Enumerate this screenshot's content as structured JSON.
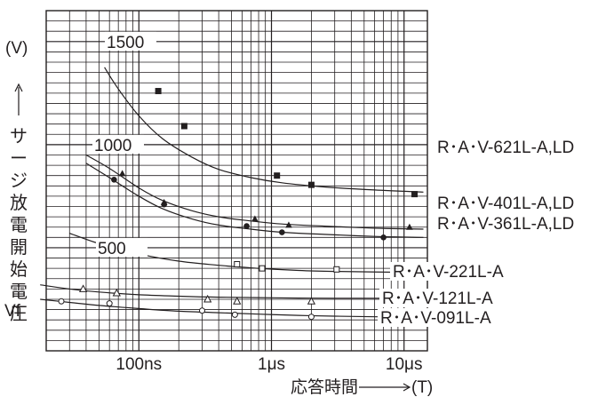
{
  "chart_data": {
    "type": "line",
    "title": "",
    "xlabel": "応答時間 ———→(T)",
    "xlabel_text": "応答時間",
    "xlabel_unit": "(T)",
    "ylabel": "(V) ↑ サージ放電開始電圧",
    "ylabel_unit": "(V)",
    "ylabel_text": [
      "サ",
      "ー",
      "ジ",
      "放",
      "電",
      "開",
      "始",
      "電",
      "圧"
    ],
    "x_scale": "log",
    "x_unit": "s",
    "xlim": [
      2e-08,
      1.5e-05
    ],
    "ylim": [
      0,
      1650
    ],
    "x_ticks": [
      {
        "value": 1e-07,
        "label": "100ns"
      },
      {
        "value": 1e-06,
        "label": "1μs"
      },
      {
        "value": 1e-05,
        "label": "10μs"
      }
    ],
    "y_ticks": [
      {
        "value": 1500,
        "label": "1500"
      },
      {
        "value": 1000,
        "label": "1000"
      },
      {
        "value": 500,
        "label": "500"
      }
    ],
    "y_annotation": {
      "label": "Vf",
      "value": 200
    },
    "grid": true,
    "series": [
      {
        "name": "R･A･V-621L-A,LD",
        "marker": "filled-square",
        "curve": {
          "x": [
            5.5e-08,
            7e-08,
            1e-07,
            1.5e-07,
            2.5e-07,
            4e-07,
            7e-07,
            1.2e-06,
            2.5e-06,
            6e-06,
            1.4e-05
          ],
          "y": [
            1375,
            1270,
            1140,
            1030,
            940,
            880,
            840,
            815,
            795,
            780,
            770
          ]
        },
        "points": {
          "x": [
            1.4e-07,
            2.2e-07,
            1.1e-06,
            2e-06,
            1.2e-05
          ],
          "y": [
            1260,
            1090,
            850,
            805,
            760
          ]
        }
      },
      {
        "name": "R･A･V-401L-A,LD",
        "marker": "filled-triangle",
        "curve": {
          "x": [
            4e-08,
            6e-08,
            1e-07,
            1.5e-07,
            2.5e-07,
            4e-07,
            7e-07,
            1.2e-06,
            2.5e-06,
            6e-06,
            1.4e-05
          ],
          "y": [
            950,
            885,
            790,
            730,
            680,
            650,
            630,
            615,
            605,
            595,
            590
          ]
        },
        "points": {
          "x": [
            7.5e-08,
            1.55e-07,
            7.5e-07,
            1.35e-06,
            1.1e-05
          ],
          "y": [
            860,
            720,
            640,
            610,
            600
          ]
        }
      },
      {
        "name": "R･A･V-361L-A,LD",
        "marker": "filled-circle",
        "curve": {
          "x": [
            4e-08,
            6e-08,
            1e-07,
            1.5e-07,
            2.5e-07,
            4e-07,
            7e-07,
            1.2e-06,
            2.5e-06,
            6e-06,
            1.4e-05
          ],
          "y": [
            910,
            840,
            750,
            690,
            640,
            610,
            590,
            575,
            565,
            555,
            550
          ]
        },
        "points": {
          "x": [
            6.5e-08,
            1.55e-07,
            6.5e-07,
            1.2e-06,
            7e-06
          ],
          "y": [
            830,
            710,
            605,
            575,
            550
          ]
        }
      },
      {
        "name": "R･A･V-221L-A",
        "marker": "open-square",
        "curve": {
          "x": [
            3e-08,
            5e-08,
            1e-07,
            2e-07,
            4e-07,
            8e-07,
            1.6e-06,
            3e-06,
            1.4e-05
          ],
          "y": [
            570,
            520,
            470,
            435,
            415,
            400,
            390,
            385,
            380
          ]
        },
        "points": {
          "x": [
            6e-08,
            7.5e-08,
            5.5e-07,
            8.5e-07,
            3.1e-06
          ],
          "y": [
            500,
            490,
            420,
            400,
            395
          ]
        }
      },
      {
        "name": "R･A･V-121L-A",
        "marker": "open-triangle",
        "curve": {
          "x": [
            1.8e-08,
            3e-08,
            5e-08,
            1e-07,
            2e-07,
            4e-07,
            8e-07,
            1.6e-06,
            3e-06,
            1.4e-05
          ],
          "y": [
            320,
            300,
            285,
            272,
            265,
            260,
            258,
            256,
            255,
            255
          ]
        },
        "points": {
          "x": [
            3.8e-08,
            6.8e-08,
            3.3e-07,
            5.5e-07,
            2e-06
          ],
          "y": [
            300,
            280,
            250,
            240,
            240
          ]
        }
      },
      {
        "name": "R･A･V-091L-A",
        "marker": "open-circle",
        "curve": {
          "x": [
            1.8e-08,
            3e-08,
            5e-08,
            1e-07,
            2e-07,
            4e-07,
            8e-07,
            1.6e-06,
            3e-06,
            1.4e-05
          ],
          "y": [
            250,
            235,
            220,
            205,
            192,
            185,
            178,
            172,
            168,
            162
          ]
        },
        "points": {
          "x": [
            2.6e-08,
            6e-08,
            3e-07,
            5.3e-07,
            2e-06
          ],
          "y": [
            240,
            230,
            195,
            175,
            165
          ]
        }
      }
    ]
  }
}
